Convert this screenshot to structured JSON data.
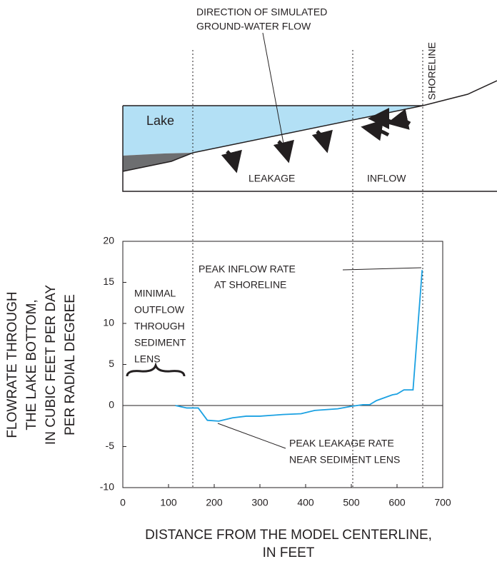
{
  "chart_data": {
    "type": "line",
    "diagram": {
      "flow_label": [
        "DIRECTION OF SIMULATED",
        "GROUND-WATER FLOW"
      ],
      "lake": "Lake",
      "leakage": "LEAKAGE",
      "inflow": "INFLOW",
      "shoreline": "SHORELINE"
    },
    "xlabel": [
      "DISTANCE FROM THE MODEL CENTERLINE,",
      "IN FEET"
    ],
    "ylabel": [
      "FLOWRATE THROUGH",
      "THE LAKE BOTTOM,",
      "IN CUBIC FEET PER DAY",
      "PER RADIAL DEGREE"
    ],
    "annotations": {
      "minimal": [
        "MINIMAL",
        "OUTFLOW",
        "THROUGH",
        "SEDIMENT",
        "LENS"
      ],
      "peak_inflow": [
        "PEAK INFLOW RATE",
        "AT SHORELINE"
      ],
      "peak_leakage": [
        "PEAK LEAKAGE RATE",
        "NEAR SEDIMENT LENS"
      ]
    },
    "x": [
      115,
      140,
      165,
      185,
      210,
      240,
      270,
      300,
      350,
      390,
      420,
      470,
      500,
      525,
      540,
      555,
      590,
      600,
      615,
      635,
      655
    ],
    "series": [
      {
        "color": "#1ba1e2",
        "values": [
          0,
          -0.3,
          -0.3,
          -1.8,
          -1.9,
          -1.5,
          -1.3,
          -1.3,
          -1.1,
          -1.0,
          -0.6,
          -0.4,
          -0.1,
          0.1,
          0.1,
          0.6,
          1.3,
          1.4,
          1.9,
          1.9,
          16.5
        ]
      }
    ],
    "xlim": [
      0,
      700
    ],
    "xticks": [
      0,
      100,
      200,
      300,
      400,
      500,
      600,
      700
    ],
    "ylim": [
      -10,
      20
    ],
    "yticks": [
      -10,
      -5,
      0,
      5,
      10,
      15,
      20
    ]
  }
}
